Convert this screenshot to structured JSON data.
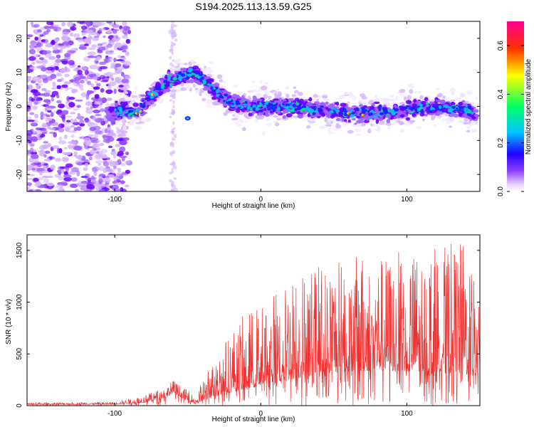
{
  "title": "S194.2025.113.13.59.G25",
  "colors": {
    "snr_line": "#ee3030",
    "scatter": [
      "#f2eaff",
      "#d4b3ff",
      "#9e5fff",
      "#6a00ff",
      "#2020ff",
      "#00c0ff",
      "#00e080",
      "#e0e000",
      "#ff4020"
    ]
  },
  "chart_data": [
    {
      "type": "heatmap",
      "name": "spectrogram",
      "xlabel": "Height of straight line (km)",
      "ylabel": "Frequency (Hz)",
      "xlim": [
        -160,
        150
      ],
      "ylim": [
        -25,
        25
      ],
      "xticks": [
        -100,
        0,
        100
      ],
      "yticks": [
        -20,
        -10,
        0,
        10,
        20
      ],
      "colorbar": {
        "label": "Normalized spectral amplitude",
        "range": [
          0,
          0.7
        ],
        "ticks": [
          "0.0",
          "0.2",
          "0.4",
          "0.6"
        ],
        "tick_values": [
          0,
          0.2,
          0.4,
          0.6
        ],
        "colors": [
          "#ffffff",
          "#e0c8ff",
          "#8000ff",
          "#0000ff",
          "#00d0ff",
          "#00ff60",
          "#ffff00",
          "#ff4000",
          "#ff0080"
        ]
      },
      "ridge": {
        "x": [
          -105,
          -95,
          -85,
          -75,
          -65,
          -55,
          -45,
          -40,
          -30,
          -20,
          0,
          20,
          40,
          60,
          80,
          100,
          120,
          140,
          148
        ],
        "y": [
          -2,
          -1,
          -2,
          3,
          7,
          9,
          10,
          8,
          4,
          1,
          0,
          0,
          -1,
          -2,
          -2,
          -1,
          0,
          -1,
          -3
        ]
      }
    },
    {
      "type": "line",
      "name": "snr",
      "xlabel": "Height of straight line (km)",
      "ylabel": "SNR (10 * v/v)",
      "xlim": [
        -160,
        150
      ],
      "ylim": [
        0,
        1650
      ],
      "xticks": [
        -100,
        0,
        100
      ],
      "yticks": [
        0,
        500,
        1000,
        1500
      ],
      "envelope": {
        "x": [
          -160,
          -100,
          -80,
          -65,
          -60,
          -50,
          -45,
          -40,
          -30,
          -20,
          -10,
          0,
          20,
          40,
          60,
          80,
          100,
          120,
          140,
          150
        ],
        "base": [
          10,
          12,
          30,
          80,
          120,
          50,
          20,
          40,
          100,
          130,
          160,
          200,
          250,
          300,
          330,
          340,
          330,
          320,
          300,
          290
        ],
        "peak": [
          30,
          35,
          100,
          180,
          250,
          150,
          90,
          250,
          500,
          750,
          900,
          1000,
          1250,
          1400,
          1450,
          1450,
          1500,
          1550,
          1600,
          1300
        ]
      }
    }
  ]
}
